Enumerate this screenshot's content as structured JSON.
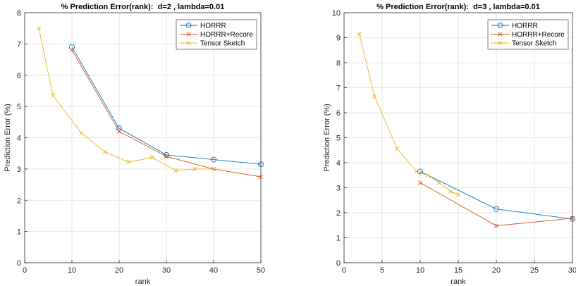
{
  "chart_data": [
    {
      "type": "line",
      "title": "% Prediction Error(rank):  d=2 , lambda=0.01",
      "xlabel": "rank",
      "ylabel": "Prediction Error (%)",
      "xlim": [
        0,
        50
      ],
      "ylim": [
        0,
        8
      ],
      "xticks": [
        0,
        10,
        20,
        30,
        40,
        50
      ],
      "yticks": [
        0,
        1,
        2,
        3,
        4,
        5,
        6,
        7,
        8
      ],
      "grid": true,
      "legend_position": "top-right",
      "series": [
        {
          "name": "HORRR",
          "color": "#0072BD",
          "marker": "circle",
          "x": [
            10,
            20,
            30,
            40,
            50
          ],
          "y": [
            6.9,
            4.3,
            3.45,
            3.3,
            3.15
          ]
        },
        {
          "name": "HORRR+Recore",
          "color": "#D95319",
          "marker": "x",
          "x": [
            10,
            20,
            30,
            40,
            50
          ],
          "y": [
            6.8,
            4.2,
            3.4,
            3.0,
            2.75
          ]
        },
        {
          "name": "Tensor Sketch",
          "color": "#EDB120",
          "marker": "x",
          "x": [
            3,
            6,
            12,
            17,
            22,
            27,
            32,
            36,
            40
          ],
          "y": [
            7.5,
            5.35,
            4.15,
            3.55,
            3.22,
            3.37,
            2.95,
            3.0,
            3.0
          ]
        }
      ]
    },
    {
      "type": "line",
      "title": "% Prediction Error(rank):  d=3 , lambda=0.01",
      "xlabel": "rank",
      "ylabel": "Prediction Error (%)",
      "xlim": [
        0,
        30
      ],
      "ylim": [
        0,
        10
      ],
      "xticks": [
        0,
        5,
        10,
        15,
        20,
        25,
        30
      ],
      "yticks": [
        0,
        1,
        2,
        3,
        4,
        5,
        6,
        7,
        8,
        9,
        10
      ],
      "grid": true,
      "legend_position": "top-right",
      "series": [
        {
          "name": "HORRR",
          "color": "#0072BD",
          "marker": "circle",
          "x": [
            10,
            20,
            30
          ],
          "y": [
            3.65,
            2.15,
            1.75
          ]
        },
        {
          "name": "HORRR+Recore",
          "color": "#D95319",
          "marker": "x",
          "x": [
            10,
            20,
            30
          ],
          "y": [
            3.2,
            1.48,
            1.78
          ]
        },
        {
          "name": "Tensor Sketch",
          "color": "#EDB120",
          "marker": "x",
          "x": [
            2,
            4,
            7,
            9.5,
            11,
            12.5,
            14,
            15
          ],
          "y": [
            9.15,
            6.65,
            4.55,
            3.65,
            3.5,
            3.2,
            2.85,
            2.72
          ]
        }
      ]
    }
  ]
}
